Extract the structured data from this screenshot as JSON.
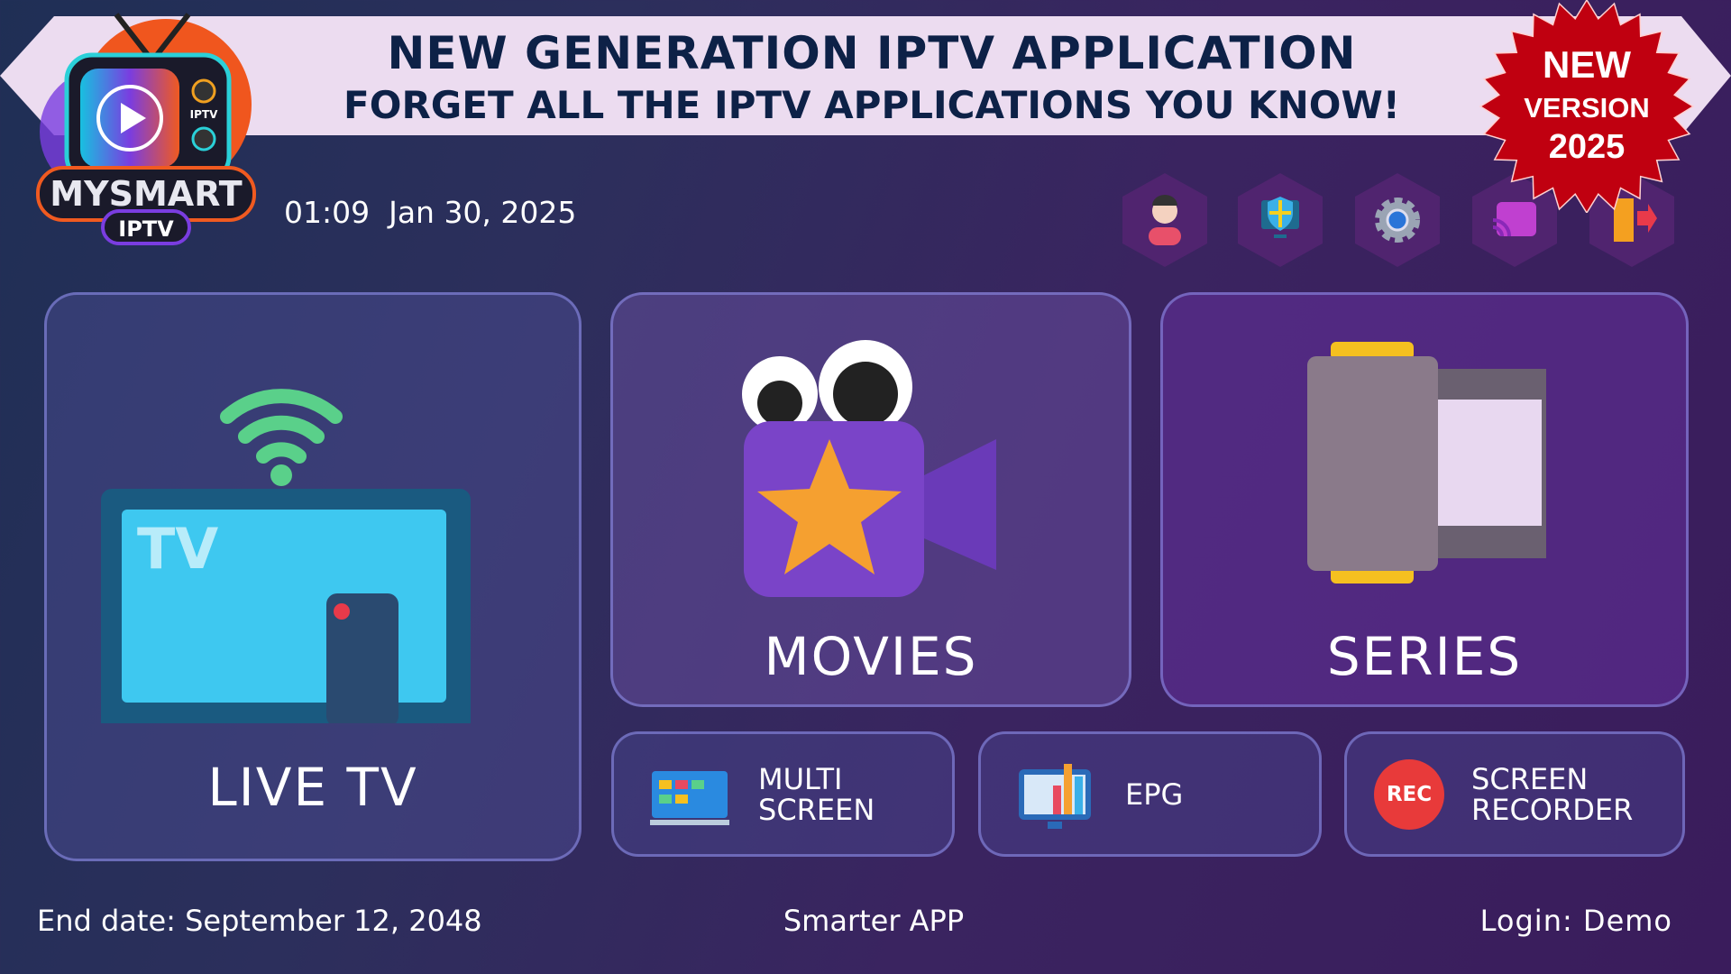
{
  "banner": {
    "line1": "NEW GENERATION IPTV APPLICATION",
    "line2": "FORGET ALL THE IPTV APPLICATIONS YOU KNOW!"
  },
  "logo": {
    "text": "MYSMART",
    "sub": "IPTV",
    "tv_label": "IPTV"
  },
  "badge": {
    "line1": "NEW",
    "line2": "VERSION",
    "line3": "2025",
    "color": "#c00010"
  },
  "datetime": "01:09  Jan 30, 2025",
  "top_icons": [
    "user-icon",
    "vpn-shield-icon",
    "settings-gear-icon",
    "cast-icon",
    "exit-door-icon"
  ],
  "tiles": {
    "live_tv": "LIVE TV",
    "movies": "MOVIES",
    "series": "SERIES",
    "multi_screen": "MULTI\nSCREEN",
    "epg": "EPG",
    "screen_recorder": "SCREEN\nRECORDER",
    "rec_badge": "REC",
    "tv_screen_text": "TV"
  },
  "footer": {
    "end_date": "End date: September 12, 2048",
    "app_name": "Smarter APP",
    "login": "Login: Demo"
  }
}
